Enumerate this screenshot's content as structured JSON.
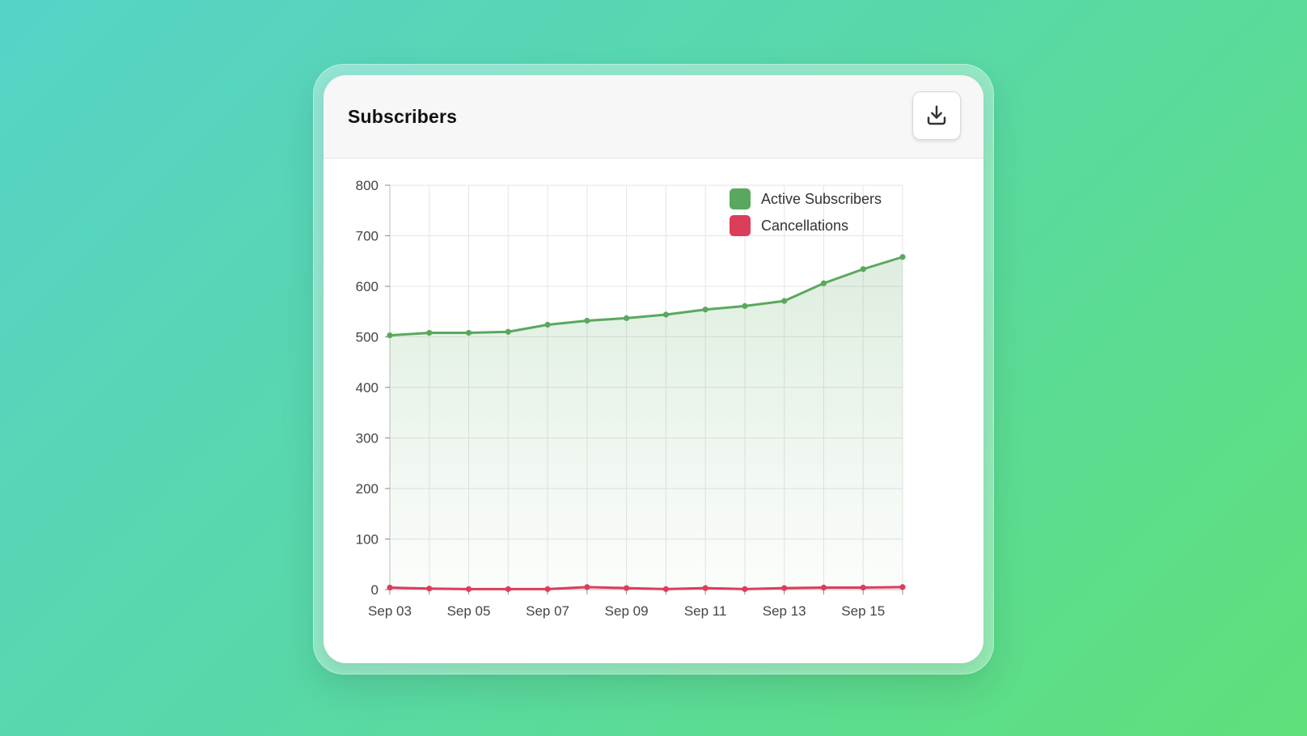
{
  "card": {
    "title": "Subscribers",
    "download_icon": "download-icon"
  },
  "colors": {
    "active": "#5aa85e",
    "cancel": "#dc3d5a",
    "grid": "#e5e5e5",
    "axis_text": "#444444"
  },
  "chart_data": {
    "type": "line",
    "title": "",
    "xlabel": "",
    "ylabel": "",
    "x": [
      "Sep 03",
      "Sep 04",
      "Sep 05",
      "Sep 06",
      "Sep 07",
      "Sep 08",
      "Sep 09",
      "Sep 10",
      "Sep 11",
      "Sep 12",
      "Sep 13",
      "Sep 14",
      "Sep 15",
      "Sep 16"
    ],
    "x_tick_labels": [
      "Sep 03",
      "Sep 05",
      "Sep 07",
      "Sep 09",
      "Sep 11",
      "Sep 13",
      "Sep 15"
    ],
    "ylim": [
      0,
      800
    ],
    "y_ticks": [
      0,
      100,
      200,
      300,
      400,
      500,
      600,
      700,
      800
    ],
    "grid": true,
    "legend_position": "top-right",
    "series": [
      {
        "name": "Active Subscribers",
        "color": "#5aa85e",
        "area_fill": true,
        "values": [
          503,
          508,
          508,
          510,
          524,
          532,
          537,
          544,
          554,
          561,
          571,
          606,
          634,
          658
        ]
      },
      {
        "name": "Cancellations",
        "color": "#dc3d5a",
        "area_fill": false,
        "values": [
          4,
          2,
          1,
          1,
          1,
          5,
          3,
          1,
          3,
          1,
          3,
          4,
          4,
          5
        ]
      }
    ]
  }
}
